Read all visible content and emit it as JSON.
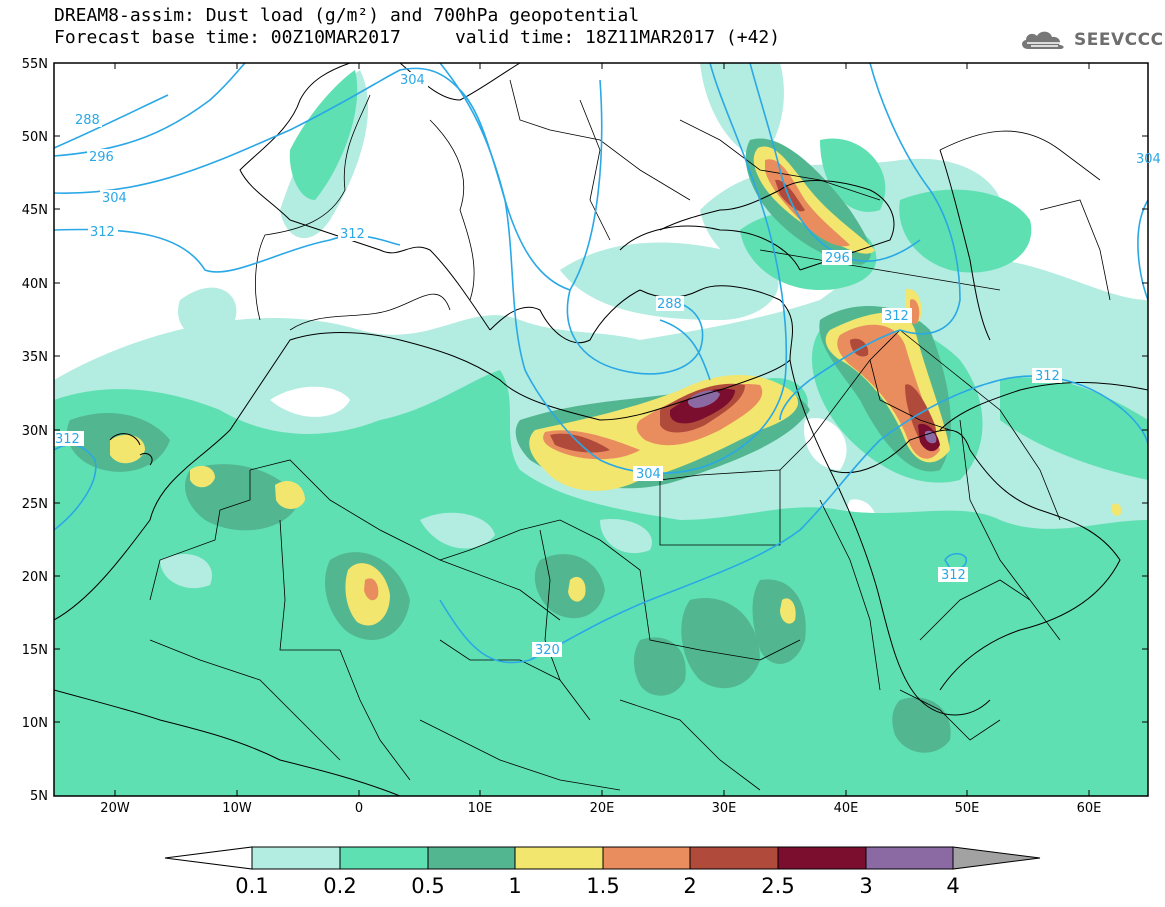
{
  "title_line1": "DREAM8-assim: Dust load (g/m²) and 700hPa geopotential",
  "title_line2": "Forecast base time: 00Z10MAR2017     valid time: 18Z11MAR2017 (+42)",
  "logo_text": "SEEVCCC",
  "logo_icon": "cloud-icon",
  "lat_labels": [
    "55N",
    "50N",
    "45N",
    "40N",
    "35N",
    "30N",
    "25N",
    "20N",
    "15N",
    "10N",
    "5N"
  ],
  "lon_labels": [
    "20W",
    "10W",
    "0",
    "10E",
    "20E",
    "30E",
    "40E",
    "50E",
    "60E"
  ],
  "contour_labels": [
    "288",
    "296",
    "304",
    "312",
    "312",
    "304",
    "296",
    "304",
    "288",
    "312",
    "304",
    "312",
    "312",
    "320",
    "312"
  ],
  "colorbar": {
    "ticks": [
      "0.1",
      "0.2",
      "0.5",
      "1",
      "1.5",
      "2",
      "2.5",
      "3",
      "4"
    ],
    "colors": [
      "#ffffff",
      "#b3ece0",
      "#5fe0b3",
      "#52b791",
      "#f2e66f",
      "#ea8d5e",
      "#b04b3c",
      "#7b0d2e",
      "#8b6aa4",
      "#a2a2a2"
    ]
  },
  "colors": {
    "contour": "#2aa8e6",
    "dust_low": "#b3ece0",
    "dust_mid": "#5fe0b3",
    "dust_high": "#52b791"
  }
}
